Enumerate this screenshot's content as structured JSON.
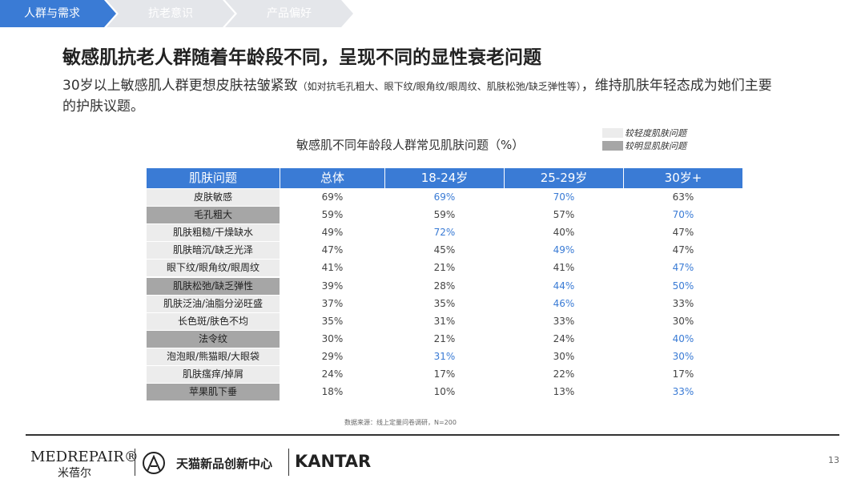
{
  "tabs": [
    {
      "label": "人群与需求",
      "active": true
    },
    {
      "label": "抗老意识",
      "active": false
    },
    {
      "label": "产品偏好",
      "active": false
    }
  ],
  "title": "敏感肌抗老人群随着年龄段不同，呈现不同的显性衰老问题",
  "subtitle": {
    "main": "30岁以上敏感肌人群更想皮肤祛皱紧致",
    "note": "（如对抗毛孔粗大、眼下纹/眼角纹/眼周纹、肌肤松弛/缺乏弹性等）",
    "rest": "，维持肌肤年轻态成为她们主要的护肤议题。"
  },
  "table": {
    "title": "敏感肌不同年龄段人群常见肌肤问题（%）",
    "legend": [
      {
        "label": "较轻度肌肤问题",
        "color": "#ececec"
      },
      {
        "label": "较明显肌肤问题",
        "color": "#a6a6a6"
      }
    ],
    "header_color": "#3a7bd5",
    "highlight_color": "#3a7bd5",
    "columns": [
      "肌肤问题",
      "总体",
      "18-24岁",
      "25-29岁",
      "30岁+"
    ],
    "rows": [
      {
        "issue": "皮肤敏感",
        "legend": 0,
        "cells": [
          "69%",
          "69%",
          "70%",
          "63%"
        ],
        "highlight": [
          false,
          true,
          true,
          false
        ]
      },
      {
        "issue": "毛孔粗大",
        "legend": 1,
        "cells": [
          "59%",
          "59%",
          "57%",
          "70%"
        ],
        "highlight": [
          false,
          false,
          false,
          true
        ]
      },
      {
        "issue": "肌肤粗糙/干燥缺水",
        "legend": 0,
        "cells": [
          "49%",
          "72%",
          "40%",
          "47%"
        ],
        "highlight": [
          false,
          true,
          false,
          false
        ]
      },
      {
        "issue": "肌肤暗沉/缺乏光泽",
        "legend": 0,
        "cells": [
          "47%",
          "45%",
          "49%",
          "47%"
        ],
        "highlight": [
          false,
          false,
          true,
          false
        ]
      },
      {
        "issue": "眼下纹/眼角纹/眼周纹",
        "legend": 0,
        "cells": [
          "41%",
          "21%",
          "41%",
          "47%"
        ],
        "highlight": [
          false,
          false,
          false,
          true
        ]
      },
      {
        "issue": "肌肤松弛/缺乏弹性",
        "legend": 1,
        "cells": [
          "39%",
          "28%",
          "44%",
          "50%"
        ],
        "highlight": [
          false,
          false,
          true,
          true
        ]
      },
      {
        "issue": "肌肤泛油/油脂分泌旺盛",
        "legend": 0,
        "cells": [
          "37%",
          "35%",
          "46%",
          "33%"
        ],
        "highlight": [
          false,
          false,
          true,
          false
        ]
      },
      {
        "issue": "长色斑/肤色不均",
        "legend": 0,
        "cells": [
          "35%",
          "31%",
          "33%",
          "30%"
        ],
        "highlight": [
          false,
          false,
          false,
          false
        ]
      },
      {
        "issue": "法令纹",
        "legend": 1,
        "cells": [
          "30%",
          "21%",
          "24%",
          "40%"
        ],
        "highlight": [
          false,
          false,
          false,
          true
        ]
      },
      {
        "issue": "泡泡眼/熊猫眼/大眼袋",
        "legend": 0,
        "cells": [
          "29%",
          "31%",
          "30%",
          "30%"
        ],
        "highlight": [
          false,
          true,
          false,
          true
        ]
      },
      {
        "issue": "肌肤瘙痒/掉屑",
        "legend": 0,
        "cells": [
          "24%",
          "17%",
          "22%",
          "17%"
        ],
        "highlight": [
          false,
          false,
          false,
          false
        ]
      },
      {
        "issue": "苹果肌下垂",
        "legend": 1,
        "cells": [
          "18%",
          "10%",
          "13%",
          "33%"
        ],
        "highlight": [
          false,
          false,
          false,
          true
        ]
      }
    ],
    "source": "数据来源：线上定量问卷调研，N=200"
  },
  "footer": {
    "brand": "MEDREPAIR®",
    "brand_cn": "米蓓尔",
    "partner": "天猫新品创新中心",
    "agency": "KANTAR",
    "page": "13"
  }
}
